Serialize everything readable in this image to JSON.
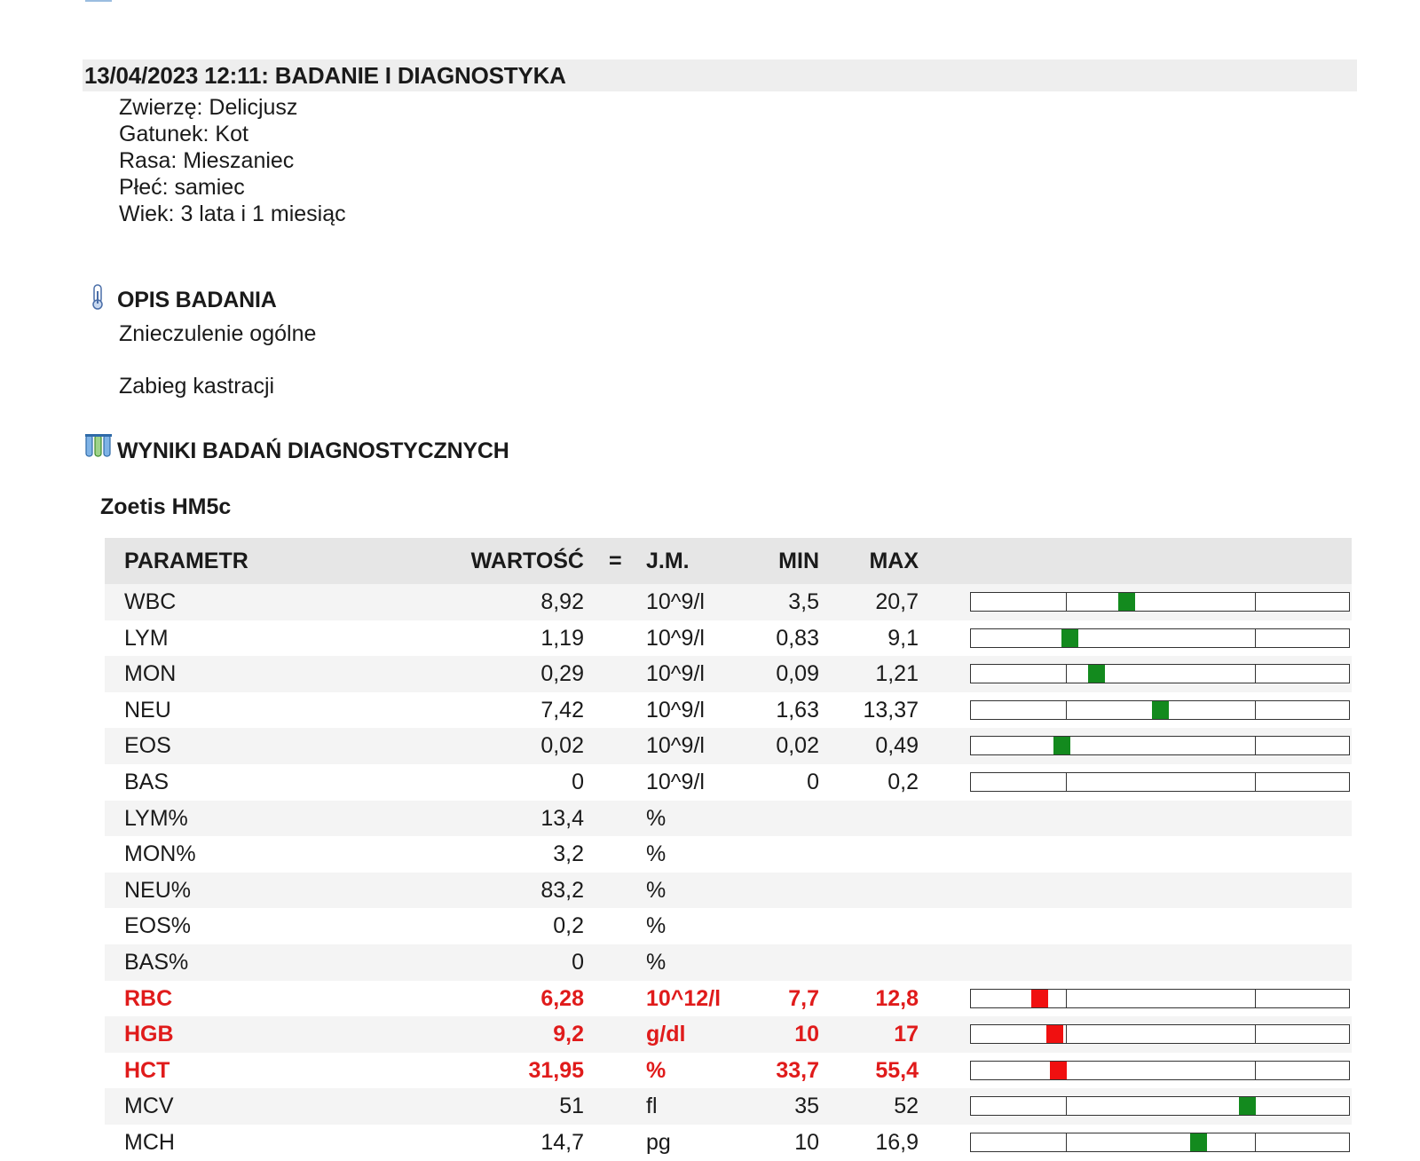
{
  "visit": {
    "header": "13/04/2023 12:11: BADANIE I DIAGNOSTYKA",
    "animal": "Zwierzę: Delicjusz",
    "species": "Gatunek: Kot",
    "breed": "Rasa: Mieszaniec",
    "sex": "Płeć: samiec",
    "age": "Wiek: 3 lata i 1 miesiąc"
  },
  "opis": {
    "title": "OPIS BADANIA",
    "icon": "thermometer-icon",
    "line1": "Znieczulenie ogólne",
    "line2": "Zabieg kastracji"
  },
  "wyniki": {
    "title": "WYNIKI BADAŃ DIAGNOSTYCZNYCH",
    "icon": "test-tubes-icon",
    "device": "Zoetis HM5c"
  },
  "table": {
    "headers": {
      "param": "PARAMETR",
      "value": "WARTOŚĆ",
      "eq": "=",
      "unit": "J.M.",
      "min": "MIN",
      "max": "MAX"
    },
    "colors": {
      "normal_marker": "#138a1e",
      "abnormal_marker": "#f01010",
      "abnormal_text": "#e01b1b"
    },
    "rows": [
      {
        "param": "WBC",
        "value": "8,92",
        "unit": "10^9/l",
        "min": "3,5",
        "max": "20,7",
        "flag": "normal",
        "bar": true,
        "position": 0.41
      },
      {
        "param": "LYM",
        "value": "1,19",
        "unit": "10^9/l",
        "min": "0,83",
        "max": "9,1",
        "flag": "normal",
        "bar": true,
        "position": 0.26
      },
      {
        "param": "MON",
        "value": "0,29",
        "unit": "10^9/l",
        "min": "0,09",
        "max": "1,21",
        "flag": "normal",
        "bar": true,
        "position": 0.33
      },
      {
        "param": "NEU",
        "value": "7,42",
        "unit": "10^9/l",
        "min": "1,63",
        "max": "13,37",
        "flag": "normal",
        "bar": true,
        "position": 0.5
      },
      {
        "param": "EOS",
        "value": "0,02",
        "unit": "10^9/l",
        "min": "0,02",
        "max": "0,49",
        "flag": "normal",
        "bar": true,
        "position": 0.24
      },
      {
        "param": "BAS",
        "value": "0",
        "unit": "10^9/l",
        "min": "0",
        "max": "0,2",
        "flag": "normal",
        "bar": true,
        "position": null
      },
      {
        "param": "LYM%",
        "value": "13,4",
        "unit": "%",
        "min": "",
        "max": "",
        "flag": "normal",
        "bar": false,
        "position": null
      },
      {
        "param": "MON%",
        "value": "3,2",
        "unit": "%",
        "min": "",
        "max": "",
        "flag": "normal",
        "bar": false,
        "position": null
      },
      {
        "param": "NEU%",
        "value": "83,2",
        "unit": "%",
        "min": "",
        "max": "",
        "flag": "normal",
        "bar": false,
        "position": null
      },
      {
        "param": "EOS%",
        "value": "0,2",
        "unit": "%",
        "min": "",
        "max": "",
        "flag": "normal",
        "bar": false,
        "position": null
      },
      {
        "param": "BAS%",
        "value": "0",
        "unit": "%",
        "min": "",
        "max": "",
        "flag": "normal",
        "bar": false,
        "position": null
      },
      {
        "param": "RBC",
        "value": "6,28",
        "unit": "10^12/l",
        "min": "7,7",
        "max": "12,8",
        "flag": "abnormal",
        "bar": true,
        "position": 0.18
      },
      {
        "param": "HGB",
        "value": "9,2",
        "unit": "g/dl",
        "min": "10",
        "max": "17",
        "flag": "abnormal",
        "bar": true,
        "position": 0.22
      },
      {
        "param": "HCT",
        "value": "31,95",
        "unit": "%",
        "min": "33,7",
        "max": "55,4",
        "flag": "abnormal",
        "bar": true,
        "position": 0.23
      },
      {
        "param": "MCV",
        "value": "51",
        "unit": "fl",
        "min": "35",
        "max": "52",
        "flag": "normal",
        "bar": true,
        "position": 0.73
      },
      {
        "param": "MCH",
        "value": "14,7",
        "unit": "pg",
        "min": "10",
        "max": "16,9",
        "flag": "normal",
        "bar": true,
        "position": 0.6
      }
    ]
  }
}
